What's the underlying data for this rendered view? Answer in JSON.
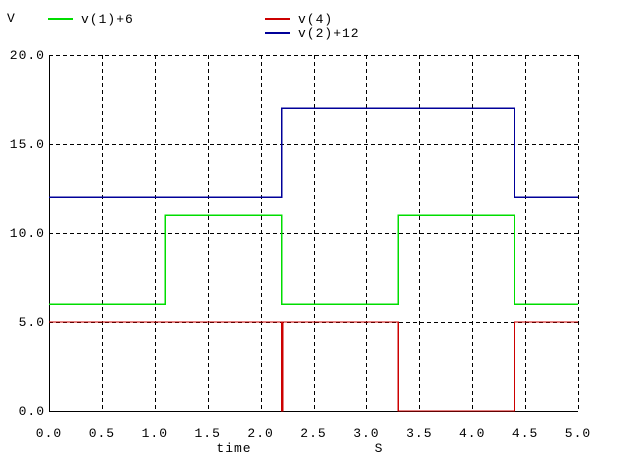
{
  "header": {
    "y_axis_unit": "V"
  },
  "legend": [
    {
      "label": "v(1)+6",
      "color": "#00dd00"
    },
    {
      "label": "v(4)",
      "color": "#cc0000"
    },
    {
      "label": "v(2)+12",
      "color": "#000099"
    }
  ],
  "colors": {
    "axis": "#000000",
    "grid": "#000000",
    "background": "#ffffff",
    "text": "#000000"
  },
  "chart_data": {
    "type": "line",
    "title": "",
    "xlabel": "time",
    "x_unit": "S",
    "ylabel": "V",
    "xlim": [
      0,
      5
    ],
    "ylim": [
      0,
      20
    ],
    "xticks": [
      0,
      0.5,
      1,
      1.5,
      2,
      2.5,
      3,
      3.5,
      4,
      4.5,
      5
    ],
    "yticks": [
      0,
      5,
      10,
      15,
      20
    ],
    "xtick_labels": [
      "0.0",
      "0.5",
      "1.0",
      "1.5",
      "2.0",
      "2.5",
      "3.0",
      "3.5",
      "4.0",
      "4.5",
      "5.0"
    ],
    "ytick_labels": [
      "0.0",
      "5.0",
      "10.0",
      "15.0",
      "20.0"
    ],
    "grid": true,
    "grid_style": "dashed",
    "legend_position": "top",
    "series": [
      {
        "name": "v(1)+6",
        "color": "#00dd00",
        "step": true,
        "points": [
          [
            0,
            6
          ],
          [
            1.1,
            6
          ],
          [
            1.1,
            11
          ],
          [
            2.2,
            11
          ],
          [
            2.2,
            6
          ],
          [
            3.3,
            6
          ],
          [
            3.3,
            11
          ],
          [
            4.4,
            11
          ],
          [
            4.4,
            6
          ],
          [
            5,
            6
          ]
        ]
      },
      {
        "name": "v(4)",
        "color": "#cc0000",
        "step": true,
        "points": [
          [
            0,
            5
          ],
          [
            2.2,
            5
          ],
          [
            2.2,
            0
          ],
          [
            2.21,
            0
          ],
          [
            2.21,
            5
          ],
          [
            3.3,
            5
          ],
          [
            3.3,
            0
          ],
          [
            4.4,
            0
          ],
          [
            4.4,
            5
          ],
          [
            5,
            5
          ]
        ]
      },
      {
        "name": "v(2)+12",
        "color": "#000099",
        "step": true,
        "points": [
          [
            0,
            12
          ],
          [
            2.2,
            12
          ],
          [
            2.2,
            17
          ],
          [
            4.4,
            17
          ],
          [
            4.4,
            12
          ],
          [
            5,
            12
          ]
        ]
      }
    ]
  }
}
